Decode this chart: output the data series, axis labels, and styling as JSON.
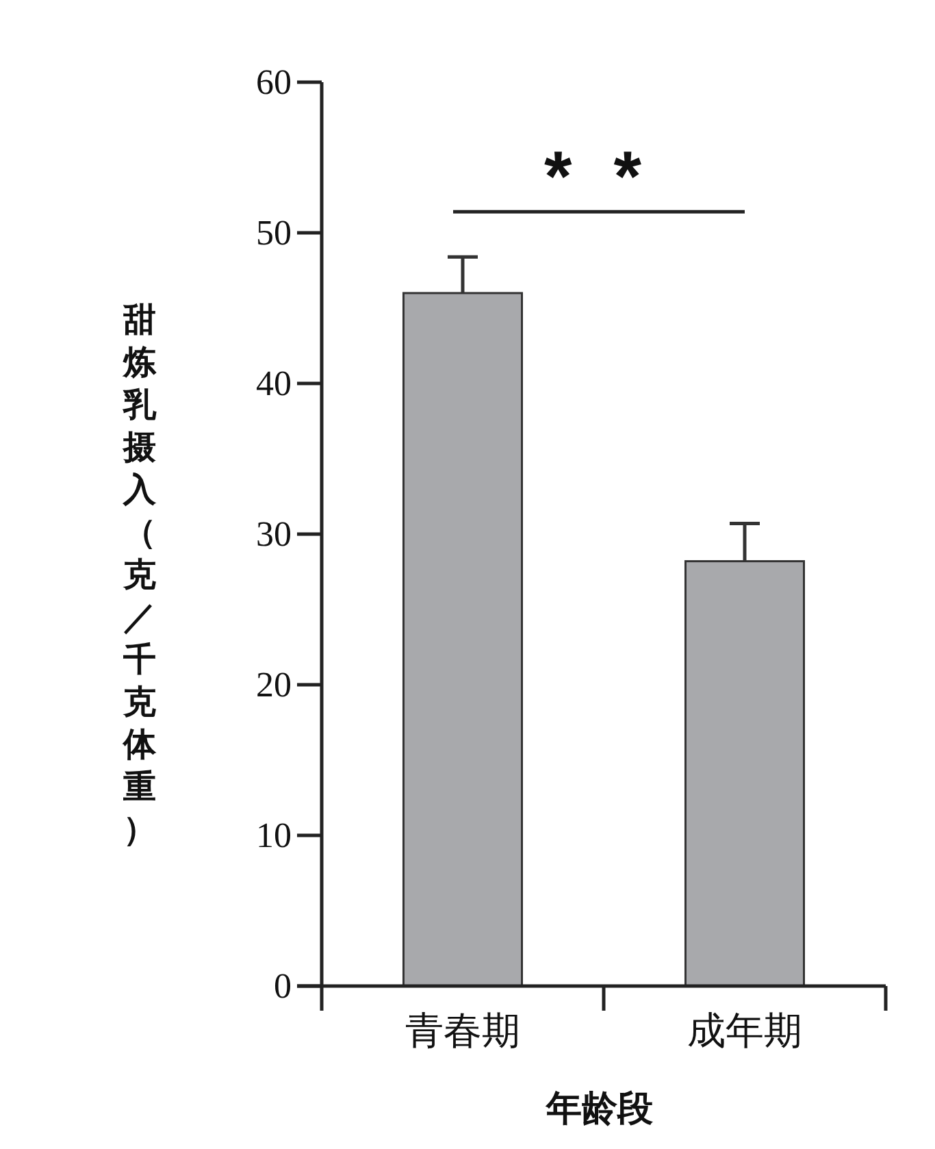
{
  "chart_data": {
    "type": "bar",
    "xlabel": "年龄段",
    "ylabel": "甜炼乳摄入（克／千克体重）",
    "categories": [
      "青春期",
      "成年期"
    ],
    "series": [
      {
        "color": "#a8a9ac",
        "values": [
          46,
          28.2
        ],
        "errors": [
          2.4,
          2.5
        ]
      }
    ],
    "ylim": [
      0,
      60
    ],
    "yticks": [
      0,
      10,
      20,
      30,
      40,
      50,
      60
    ],
    "annotations": [
      "* *"
    ],
    "grid": false
  }
}
